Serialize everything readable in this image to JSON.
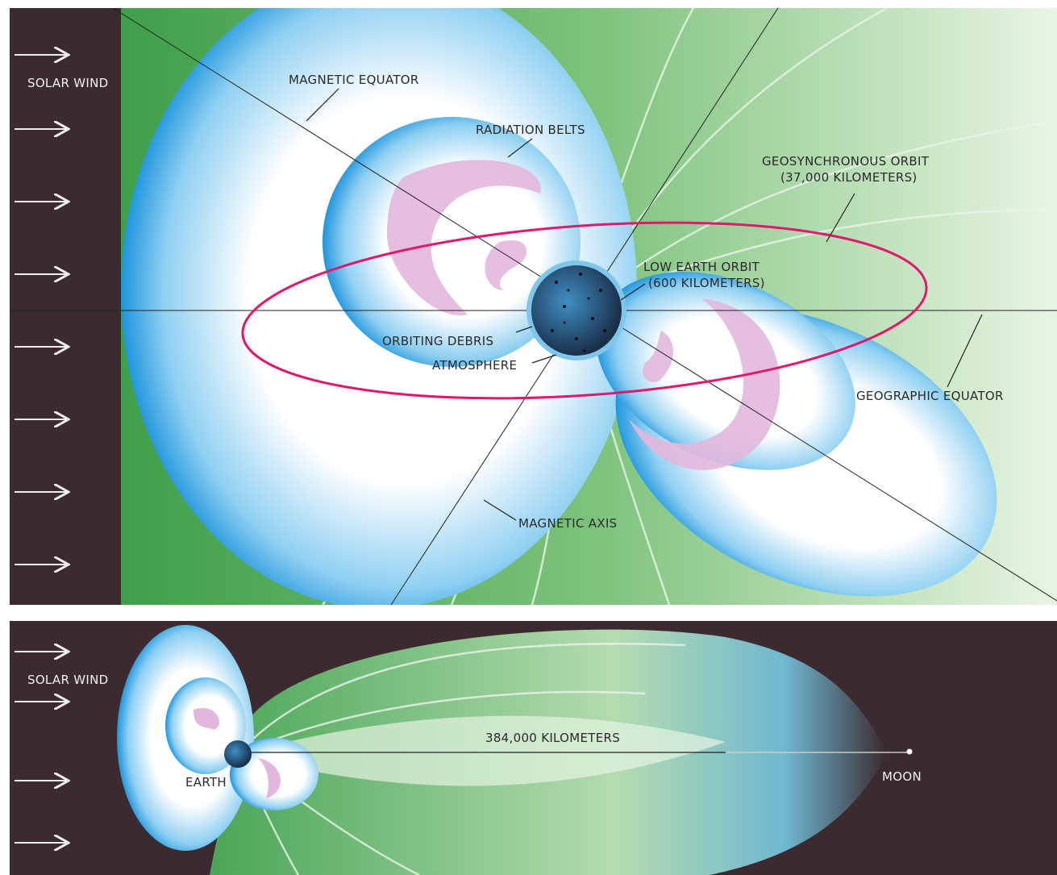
{
  "top_panel": {
    "solar_wind": "SOLAR WIND",
    "magnetic_equator": "MAGNETIC EQUATOR",
    "radiation_belts": "RADIATION BELTS",
    "geosynchronous_orbit": [
      "GEOSYNCHRONOUS ORBIT",
      "(37,000 KILOMETERS)"
    ],
    "low_earth_orbit": [
      "LOW EARTH ORBIT",
      "(600 KILOMETERS)"
    ],
    "orbiting_debris": "ORBITING DEBRIS",
    "atmosphere": "ATMOSPHERE",
    "geographic_equator": "GEOGRAPHIC EQUATOR",
    "magnetic_axis": "MAGNETIC AXIS"
  },
  "bottom_panel": {
    "solar_wind": "SOLAR WIND",
    "distance": "384,000 KILOMETERS",
    "earth": "EARTH",
    "moon": "MOON"
  }
}
